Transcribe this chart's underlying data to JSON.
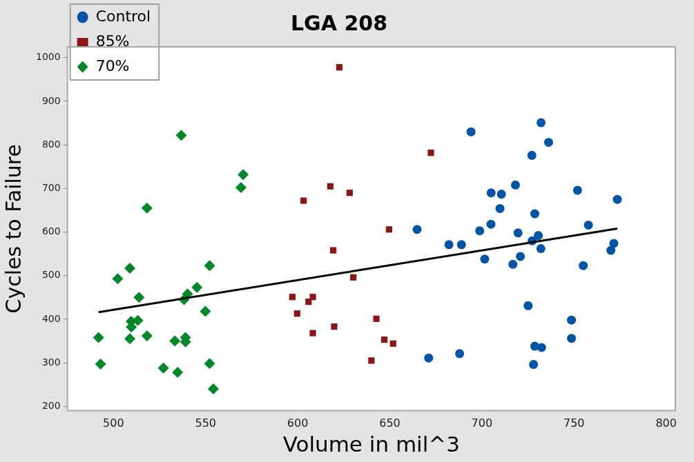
{
  "chart_data": {
    "type": "scatter",
    "title": "LGA 208",
    "xlabel": "Volume in mil^3",
    "ylabel": "Cycles to Failure",
    "xlim": [
      475,
      805
    ],
    "xticks": [
      500,
      550,
      600,
      650,
      700,
      750,
      800
    ],
    "ylim": [
      190,
      1025
    ],
    "yticks": [
      200,
      300,
      400,
      500,
      600,
      700,
      800,
      900,
      1000
    ],
    "grid": false,
    "legend": "top left",
    "series": [
      {
        "name": "Control",
        "color": "#0054a6",
        "marker": "circle",
        "x": [
          694.1,
          664.8,
          682.1,
          688.9,
          698.8,
          701.5,
          671.1,
          687.9,
          732.1,
          736.2,
          727.1,
          718.2,
          705,
          710.6,
          751.9,
          709.8,
          728.7,
          773.5,
          704.9,
          757.8,
          719.6,
          730.6,
          727.3,
          732,
          716.8,
          720.9,
          755,
          771.6,
          770,
          725.1,
          748.6,
          748.6,
          728.7,
          732.4,
          728
        ],
        "values": [
          830,
          606,
          571,
          571,
          603,
          538,
          311,
          321,
          851,
          806,
          776,
          708,
          690,
          687,
          696,
          654,
          642,
          675,
          618,
          616,
          598,
          592,
          580,
          562,
          526,
          544,
          523,
          574,
          558,
          431,
          398,
          356,
          338,
          335,
          296
        ]
      },
      {
        "name": "85%",
        "color": "#8c1515",
        "marker": "square",
        "x": [
          622.6,
          672.3,
          617.7,
          628.2,
          603.2,
          649.6,
          619.3,
          630.2,
          597.1,
          608.2,
          605.9,
          599.7,
          608.2,
          619.8,
          642.7,
          647,
          651.8,
          640
        ],
        "values": [
          978,
          782,
          705,
          690,
          672,
          606,
          558,
          496,
          451,
          451,
          440,
          413,
          368,
          383,
          401,
          353,
          344,
          305
        ]
      },
      {
        "name": "70%",
        "color": "#00872a",
        "marker": "diamond",
        "x": [
          491.9,
          493,
          502.3,
          508.9,
          509.6,
          509.7,
          513.2,
          513.9,
          518.2,
          508.9,
          527.1,
          534.8,
          533.3,
          539.1,
          539.1,
          538.3,
          540.2,
          545.3,
          549.9,
          552.2,
          552.2,
          554.2,
          536.8,
          570.4,
          569.2,
          518.2
        ],
        "values": [
          358,
          297,
          493,
          517,
          395,
          382,
          397,
          450,
          362,
          355,
          288,
          278,
          350,
          358,
          348,
          445,
          458,
          473,
          418,
          523,
          298,
          240,
          822,
          732,
          702,
          655
        ]
      },
      {
        "type": "line",
        "color": "#000000",
        "marker": "none",
        "line_style": "solid",
        "x": [
          491.9,
          773.5
        ],
        "values": [
          416,
          608
        ]
      }
    ]
  }
}
